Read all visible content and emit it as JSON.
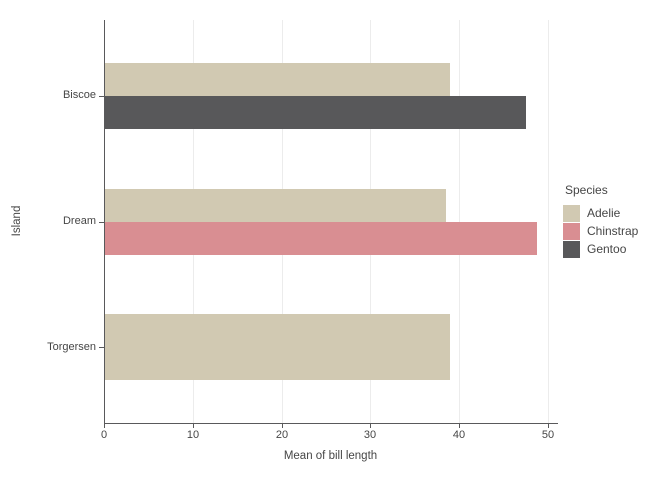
{
  "chart_data": {
    "type": "bar",
    "orientation": "horizontal",
    "title": "",
    "xlabel": "Mean of bill length",
    "ylabel": "Island",
    "legend_title": "Species",
    "legend_position": "right",
    "categories": [
      "Biscoe",
      "Dream",
      "Torgersen"
    ],
    "series": [
      {
        "name": "Adelie",
        "color": "#d1c9b2",
        "values": [
          39.0,
          38.5,
          39.0
        ]
      },
      {
        "name": "Chinstrap",
        "color": "#d98e92",
        "values": [
          null,
          48.8,
          null
        ]
      },
      {
        "name": "Gentoo",
        "color": "#58585a",
        "values": [
          47.5,
          null,
          null
        ]
      }
    ],
    "xticks": [
      0,
      10,
      20,
      30,
      40,
      50
    ],
    "xlim": [
      0,
      51
    ],
    "grid": "vertical",
    "colors": {
      "grid": "#ececec",
      "spine": "#59595b",
      "text": "#464646",
      "background": "#ffffff"
    }
  }
}
